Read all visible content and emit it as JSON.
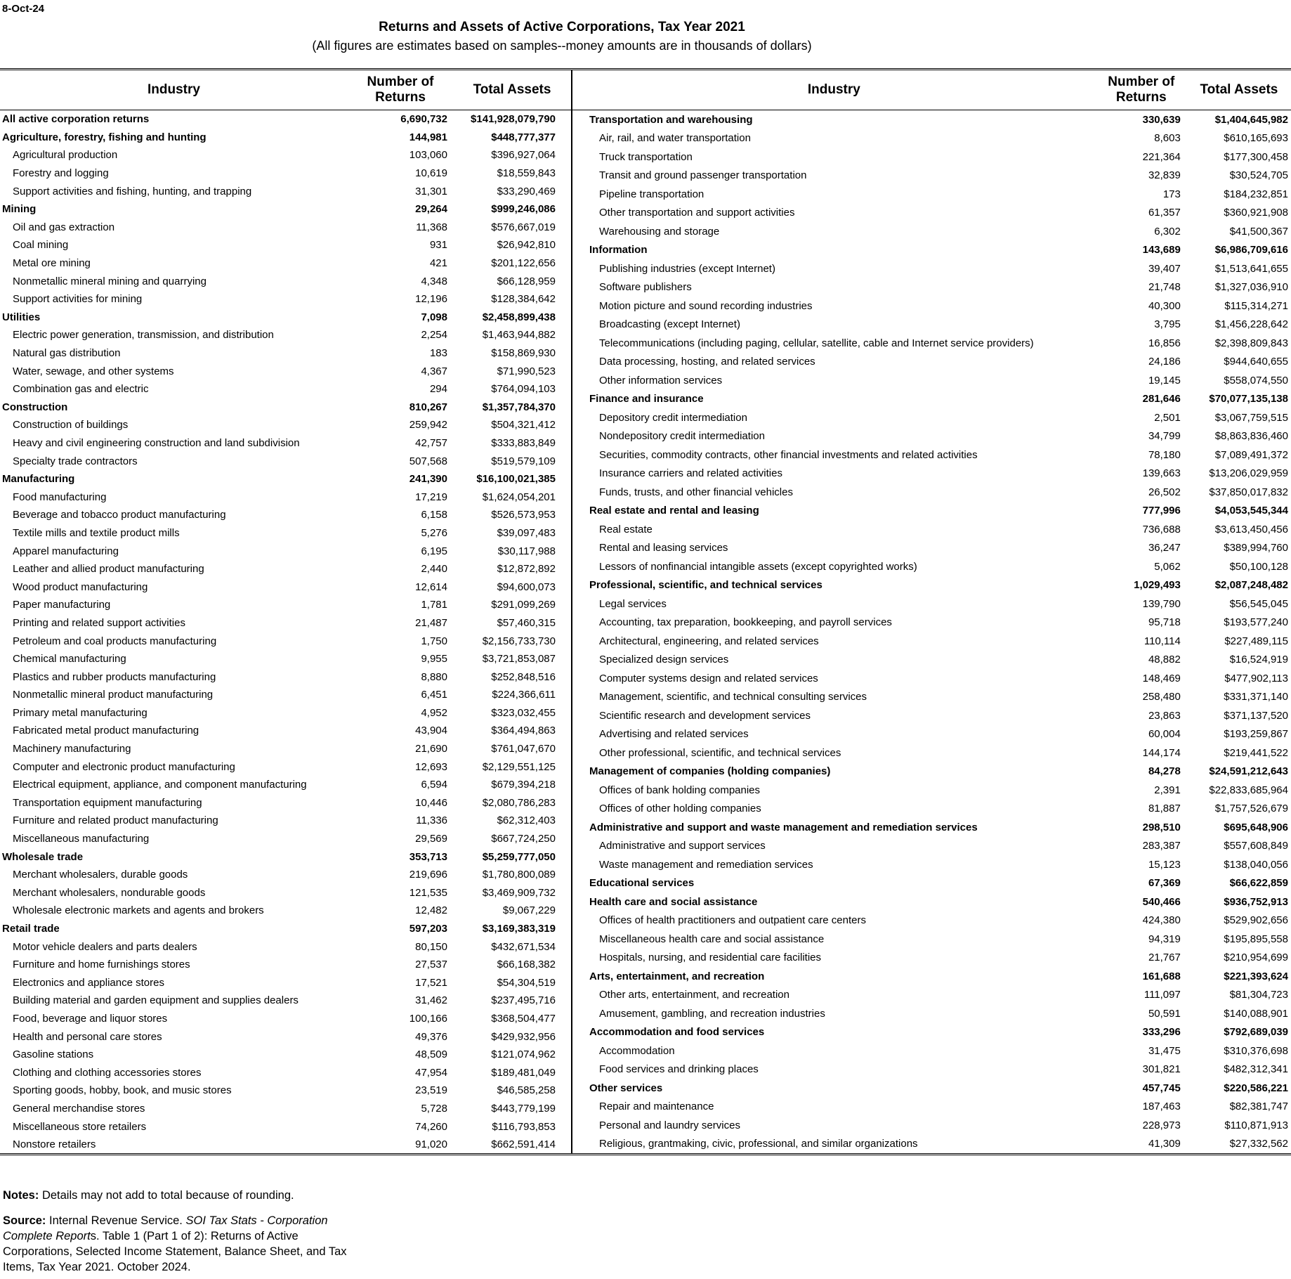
{
  "date": "8-Oct-24",
  "title": "Returns and Assets of Active Corporations, Tax Year 2021",
  "subtitle": "(All figures are estimates based on samples--money amounts are in thousands of dollars)",
  "columns": [
    "Industry",
    "Number of Returns",
    "Total Assets"
  ],
  "left": [
    {
      "name": "All active corporation returns",
      "returns": "6,690,732",
      "assets": "$141,928,079,790"
    },
    {
      "name": "Agriculture, forestry, fishing and hunting",
      "returns": "144,981",
      "assets": "$448,777,377",
      "rows": [
        [
          "Agricultural production",
          "103,060",
          "$396,927,064"
        ],
        [
          "Forestry and logging",
          "10,619",
          "$18,559,843"
        ],
        [
          "Support activities and fishing, hunting, and trapping",
          "31,301",
          "$33,290,469"
        ]
      ]
    },
    {
      "name": "Mining",
      "returns": "29,264",
      "assets": "$999,246,086",
      "rows": [
        [
          "Oil and gas extraction",
          "11,368",
          "$576,667,019"
        ],
        [
          "Coal mining",
          "931",
          "$26,942,810"
        ],
        [
          "Metal ore mining",
          "421",
          "$201,122,656"
        ],
        [
          "Nonmetallic mineral mining and quarrying",
          "4,348",
          "$66,128,959"
        ],
        [
          "Support activities for mining",
          "12,196",
          "$128,384,642"
        ]
      ]
    },
    {
      "name": "Utilities",
      "returns": "7,098",
      "assets": "$2,458,899,438",
      "rows": [
        [
          "Electric power generation, transmission, and distribution",
          "2,254",
          "$1,463,944,882"
        ],
        [
          "Natural gas distribution",
          "183",
          "$158,869,930"
        ],
        [
          "Water, sewage, and other systems",
          "4,367",
          "$71,990,523"
        ],
        [
          "Combination gas and electric",
          "294",
          "$764,094,103"
        ]
      ]
    },
    {
      "name": "Construction",
      "returns": "810,267",
      "assets": "$1,357,784,370",
      "rows": [
        [
          "Construction of buildings",
          "259,942",
          "$504,321,412"
        ],
        [
          "Heavy and civil engineering construction and land subdivision",
          "42,757",
          "$333,883,849"
        ],
        [
          "Specialty trade contractors",
          "507,568",
          "$519,579,109"
        ]
      ]
    },
    {
      "name": "Manufacturing",
      "returns": "241,390",
      "assets": "$16,100,021,385",
      "rows": [
        [
          "Food manufacturing",
          "17,219",
          "$1,624,054,201"
        ],
        [
          "Beverage and tobacco product manufacturing",
          "6,158",
          "$526,573,953"
        ],
        [
          "Textile mills and textile product mills",
          "5,276",
          "$39,097,483"
        ],
        [
          "Apparel manufacturing",
          "6,195",
          "$30,117,988"
        ],
        [
          "Leather and allied product manufacturing",
          "2,440",
          "$12,872,892"
        ],
        [
          "Wood product manufacturing",
          "12,614",
          "$94,600,073"
        ],
        [
          "Paper manufacturing",
          "1,781",
          "$291,099,269"
        ],
        [
          "Printing and related support activities",
          "21,487",
          "$57,460,315"
        ],
        [
          "Petroleum and coal products manufacturing",
          "1,750",
          "$2,156,733,730"
        ],
        [
          "Chemical manufacturing",
          "9,955",
          "$3,721,853,087"
        ],
        [
          "Plastics and rubber products manufacturing",
          "8,880",
          "$252,848,516"
        ],
        [
          "Nonmetallic mineral product manufacturing",
          "6,451",
          "$224,366,611"
        ],
        [
          "Primary metal manufacturing",
          "4,952",
          "$323,032,455"
        ],
        [
          "Fabricated metal product manufacturing",
          "43,904",
          "$364,494,863"
        ],
        [
          "Machinery manufacturing",
          "21,690",
          "$761,047,670"
        ],
        [
          "Computer and electronic product manufacturing",
          "12,693",
          "$2,129,551,125"
        ],
        [
          "Electrical equipment, appliance, and component manufacturing",
          "6,594",
          "$679,394,218"
        ],
        [
          "Transportation equipment manufacturing",
          "10,446",
          "$2,080,786,283"
        ],
        [
          "Furniture and related product manufacturing",
          "11,336",
          "$62,312,403"
        ],
        [
          "Miscellaneous manufacturing",
          "29,569",
          "$667,724,250"
        ]
      ]
    },
    {
      "name": "Wholesale trade",
      "returns": "353,713",
      "assets": "$5,259,777,050",
      "rows": [
        [
          "Merchant wholesalers, durable goods",
          "219,696",
          "$1,780,800,089"
        ],
        [
          "Merchant wholesalers, nondurable goods",
          "121,535",
          "$3,469,909,732"
        ],
        [
          "Wholesale electronic markets and agents and brokers",
          "12,482",
          "$9,067,229"
        ]
      ]
    },
    {
      "name": "Retail trade",
      "returns": "597,203",
      "assets": "$3,169,383,319",
      "rows": [
        [
          "Motor vehicle dealers and parts dealers",
          "80,150",
          "$432,671,534"
        ],
        [
          "Furniture and home furnishings stores",
          "27,537",
          "$66,168,382"
        ],
        [
          "Electronics and appliance stores",
          "17,521",
          "$54,304,519"
        ],
        [
          "Building material and garden equipment and supplies dealers",
          "31,462",
          "$237,495,716"
        ],
        [
          "Food, beverage and liquor stores",
          "100,166",
          "$368,504,477"
        ],
        [
          "Health and personal care stores",
          "49,376",
          "$429,932,956"
        ],
        [
          "Gasoline stations",
          "48,509",
          "$121,074,962"
        ],
        [
          "Clothing and clothing accessories stores",
          "47,954",
          "$189,481,049"
        ],
        [
          "Sporting goods, hobby, book, and music stores",
          "23,519",
          "$46,585,258"
        ],
        [
          "General merchandise stores",
          "5,728",
          "$443,779,199"
        ],
        [
          "Miscellaneous store retailers",
          "74,260",
          "$116,793,853"
        ],
        [
          "Nonstore retailers",
          "91,020",
          "$662,591,414"
        ]
      ]
    }
  ],
  "right": [
    {
      "name": "Transportation and warehousing",
      "returns": "330,639",
      "assets": "$1,404,645,982",
      "rows": [
        [
          "Air, rail, and water transportation",
          "8,603",
          "$610,165,693"
        ],
        [
          "Truck transportation",
          "221,364",
          "$177,300,458"
        ],
        [
          "Transit and ground passenger transportation",
          "32,839",
          "$30,524,705"
        ],
        [
          "Pipeline transportation",
          "173",
          "$184,232,851"
        ],
        [
          "Other transportation and support activities",
          "61,357",
          "$360,921,908"
        ],
        [
          "Warehousing and storage",
          "6,302",
          "$41,500,367"
        ]
      ]
    },
    {
      "name": "Information",
      "returns": "143,689",
      "assets": "$6,986,709,616",
      "rows": [
        [
          "Publishing industries (except Internet)",
          "39,407",
          "$1,513,641,655"
        ],
        [
          "Software publishers",
          "21,748",
          "$1,327,036,910"
        ],
        [
          "Motion picture and sound recording industries",
          "40,300",
          "$115,314,271"
        ],
        [
          "Broadcasting (except Internet)",
          "3,795",
          "$1,456,228,642"
        ],
        [
          "Telecommunications (including paging, cellular, satellite, cable and Internet service providers)",
          "16,856",
          "$2,398,809,843"
        ],
        [
          "Data processing, hosting, and related services",
          "24,186",
          "$944,640,655"
        ],
        [
          "Other information services",
          "19,145",
          "$558,074,550"
        ]
      ]
    },
    {
      "name": "Finance and insurance",
      "returns": "281,646",
      "assets": "$70,077,135,138",
      "rows": [
        [
          "Depository credit intermediation",
          "2,501",
          "$3,067,759,515"
        ],
        [
          "Nondepository credit intermediation",
          "34,799",
          "$8,863,836,460"
        ],
        [
          "Securities, commodity contracts, other financial investments and related activities",
          "78,180",
          "$7,089,491,372"
        ],
        [
          "Insurance carriers and related activities",
          "139,663",
          "$13,206,029,959"
        ],
        [
          "Funds, trusts, and other financial vehicles",
          "26,502",
          "$37,850,017,832"
        ]
      ]
    },
    {
      "name": "Real estate and rental and leasing",
      "returns": "777,996",
      "assets": "$4,053,545,344",
      "rows": [
        [
          "Real estate",
          "736,688",
          "$3,613,450,456"
        ],
        [
          "Rental and leasing services",
          "36,247",
          "$389,994,760"
        ],
        [
          "Lessors of nonfinancial intangible assets (except copyrighted works)",
          "5,062",
          "$50,100,128"
        ]
      ]
    },
    {
      "name": "Professional, scientific, and technical services",
      "returns": "1,029,493",
      "assets": "$2,087,248,482",
      "rows": [
        [
          "Legal services",
          "139,790",
          "$56,545,045"
        ],
        [
          "Accounting, tax preparation, bookkeeping, and payroll services",
          "95,718",
          "$193,577,240"
        ],
        [
          "Architectural, engineering, and related services",
          "110,114",
          "$227,489,115"
        ],
        [
          "Specialized design services",
          "48,882",
          "$16,524,919"
        ],
        [
          "Computer systems design and related services",
          "148,469",
          "$477,902,113"
        ],
        [
          "Management, scientific, and technical consulting services",
          "258,480",
          "$331,371,140"
        ],
        [
          "Scientific research and development services",
          "23,863",
          "$371,137,520"
        ],
        [
          "Advertising and related services",
          "60,004",
          "$193,259,867"
        ],
        [
          "Other professional, scientific, and technical services",
          "144,174",
          "$219,441,522"
        ]
      ]
    },
    {
      "name": "Management of companies (holding companies)",
      "returns": "84,278",
      "assets": "$24,591,212,643",
      "rows": [
        [
          "Offices of bank holding companies",
          "2,391",
          "$22,833,685,964"
        ],
        [
          "Offices of other holding companies",
          "81,887",
          "$1,757,526,679"
        ]
      ]
    },
    {
      "name": "Administrative and support and waste management and remediation services",
      "returns": "298,510",
      "assets": "$695,648,906",
      "rows": [
        [
          "Administrative and support services",
          "283,387",
          "$557,608,849"
        ],
        [
          "Waste management and remediation services",
          "15,123",
          "$138,040,056"
        ]
      ]
    },
    {
      "name": "Educational services",
      "returns": "67,369",
      "assets": "$66,622,859"
    },
    {
      "name": "Health care and social assistance",
      "returns": "540,466",
      "assets": "$936,752,913",
      "rows": [
        [
          "Offices of health practitioners and outpatient care centers",
          "424,380",
          "$529,902,656"
        ],
        [
          "Miscellaneous health care and social assistance",
          "94,319",
          "$195,895,558"
        ],
        [
          "Hospitals, nursing, and residential care facilities",
          "21,767",
          "$210,954,699"
        ]
      ]
    },
    {
      "name": "Arts, entertainment, and recreation",
      "returns": "161,688",
      "assets": "$221,393,624",
      "rows": [
        [
          "Other arts, entertainment, and recreation",
          "111,097",
          "$81,304,723"
        ],
        [
          "Amusement, gambling, and recreation industries",
          "50,591",
          "$140,088,901"
        ]
      ]
    },
    {
      "name": "Accommodation and food services",
      "returns": "333,296",
      "assets": "$792,689,039",
      "rows": [
        [
          "Accommodation",
          "31,475",
          "$310,376,698"
        ],
        [
          "Food services and drinking places",
          "301,821",
          "$482,312,341"
        ]
      ]
    },
    {
      "name": "Other services",
      "returns": "457,745",
      "assets": "$220,586,221",
      "rows": [
        [
          "Repair and maintenance",
          "187,463",
          "$82,381,747"
        ],
        [
          "Personal and laundry services",
          "228,973",
          "$110,871,913"
        ],
        [
          "Religious, grantmaking, civic, professional, and similar organizations",
          "41,309",
          "$27,332,562"
        ]
      ]
    }
  ],
  "notes": {
    "label": "Notes:",
    "text": "Details may not add to total because of rounding."
  },
  "source": {
    "label": "Source:",
    "text1": "Internal Revenue Service.",
    "italic": "SOI Tax Stats - Corporation Complete Report",
    "text2": "s. Table 1 (Part 1 of 2): Returns of Active Corporations, Selected Income Statement, Balance Sheet, and Tax Items, Tax Year 2021. October 2024."
  }
}
